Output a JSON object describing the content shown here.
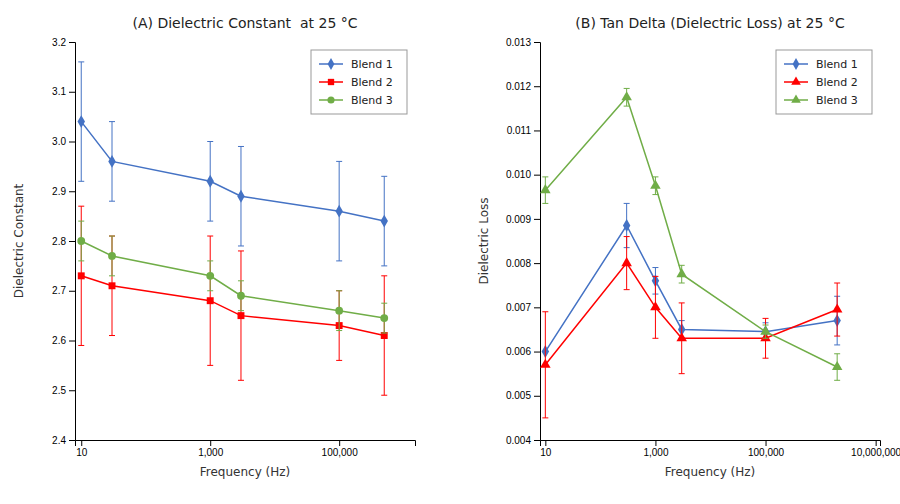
{
  "chart_data": [
    {
      "type": "line",
      "title": "(A) Dielectric Constant  at 25 °C",
      "xlabel": "Frequency (Hz)",
      "ylabel": "Dielectric Constant",
      "log": "x",
      "grid": false,
      "legend": "upper right",
      "x": [
        10,
        30,
        1000,
        3000,
        100000,
        500000
      ],
      "xlim": [
        8,
        1500000
      ],
      "xticks": [
        10,
        {
          "value": 1000,
          "label": "1,000"
        },
        {
          "value": 100000,
          "label": "100,000"
        }
      ],
      "ylim": [
        2.4,
        3.2
      ],
      "yticks": [
        2.4,
        2.5,
        2.6,
        2.7,
        2.8,
        2.9,
        {
          "value": 3.0,
          "label": "3.0"
        },
        3.1,
        3.2
      ],
      "series": [
        {
          "name": "Blend 1",
          "color": "#4472C4",
          "marker": "diamond",
          "values": [
            3.04,
            2.96,
            2.92,
            2.89,
            2.86,
            2.84
          ],
          "yerr": [
            0.12,
            0.08,
            0.08,
            0.1,
            0.1,
            0.09
          ]
        },
        {
          "name": "Blend 2",
          "color": "#FF0000",
          "marker": "square",
          "values": [
            2.73,
            2.71,
            2.68,
            2.65,
            2.63,
            2.61
          ],
          "yerr": [
            0.14,
            0.1,
            0.13,
            0.13,
            0.07,
            0.12
          ]
        },
        {
          "name": "Blend 3",
          "color": "#70AD47",
          "marker": "circle",
          "values": [
            2.8,
            2.77,
            2.73,
            2.69,
            2.66,
            2.645
          ],
          "yerr": [
            0.04,
            0.04,
            0.03,
            0.03,
            0.04,
            0.03
          ]
        }
      ]
    },
    {
      "type": "line",
      "title": "(B) Tan Delta (Dielectric Loss) at 25 °C",
      "xlabel": "Frequency (Hz)",
      "ylabel": "Dielectric Loss",
      "log": "x",
      "grid": false,
      "legend": "upper right",
      "x": [
        10,
        300,
        1000,
        3000,
        100000,
        2000000
      ],
      "xlim": [
        8,
        12000000
      ],
      "xticks": [
        10,
        {
          "value": 1000,
          "label": "1,000"
        },
        {
          "value": 100000,
          "label": "100,000"
        },
        {
          "value": 10000000,
          "label": "10,000,000"
        }
      ],
      "ylim": [
        0.004,
        0.013
      ],
      "yticks": [
        0.004,
        0.005,
        0.006,
        0.007,
        0.008,
        0.009,
        {
          "value": 0.01,
          "label": "0.010"
        },
        0.011,
        0.012,
        0.013
      ],
      "series": [
        {
          "name": "Blend 1",
          "color": "#4472C4",
          "marker": "diamond",
          "values": [
            0.006,
            0.00885,
            0.0076,
            0.0065,
            0.00645,
            0.0067
          ],
          "yerr": [
            0.0,
            0.0005,
            0.0003,
            0.0002,
            0.0002,
            0.00055
          ]
        },
        {
          "name": "Blend 2",
          "color": "#FF0000",
          "marker": "triangle",
          "values": [
            0.0057,
            0.008,
            0.007,
            0.0063,
            0.0063,
            0.00695
          ],
          "yerr": [
            0.0012,
            0.0006,
            0.0007,
            0.0008,
            0.00045,
            0.0006
          ]
        },
        {
          "name": "Blend 3",
          "color": "#70AD47",
          "marker": "triangle",
          "values": [
            0.00965,
            0.01175,
            0.00975,
            0.00775,
            0.00645,
            0.00565
          ],
          "yerr": [
            0.0003,
            0.0002,
            0.0002,
            0.0002,
            0.00015,
            0.0003
          ]
        }
      ]
    }
  ]
}
